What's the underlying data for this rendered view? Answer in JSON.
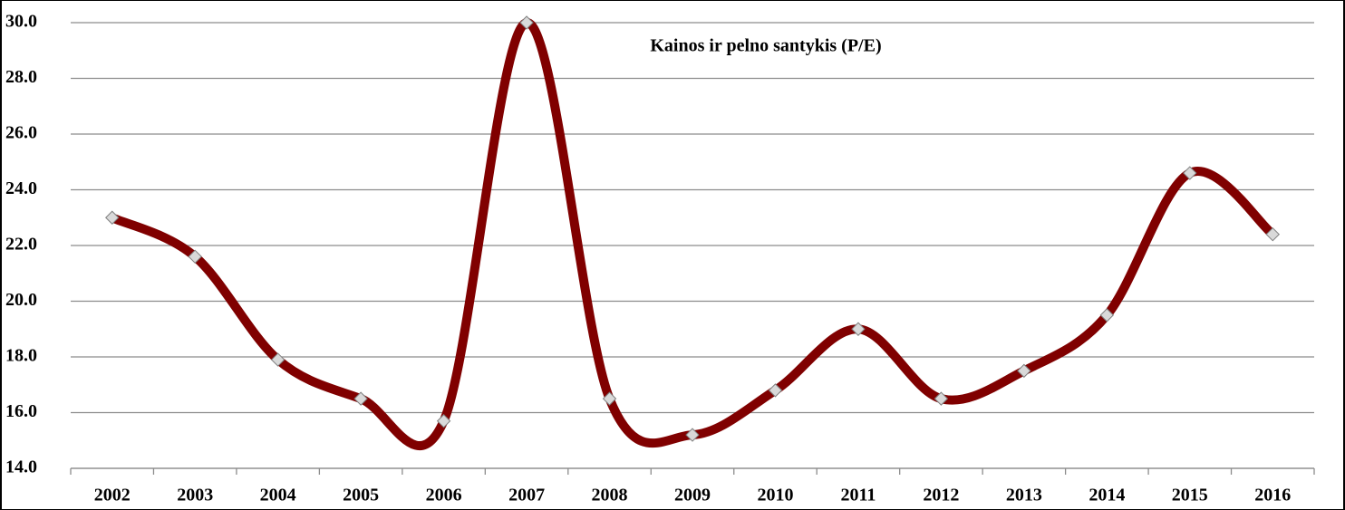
{
  "chart_data": {
    "type": "line",
    "title": "Kainos ir pelno santykis (P/E)",
    "categories": [
      "2002",
      "2003",
      "2004",
      "2005",
      "2006",
      "2007",
      "2008",
      "2009",
      "2010",
      "2011",
      "2012",
      "2013",
      "2014",
      "2015",
      "2016"
    ],
    "series": [
      {
        "name": "P/E",
        "color": "#800000",
        "values": [
          23.0,
          21.6,
          17.9,
          16.5,
          15.7,
          30.0,
          16.5,
          15.2,
          16.8,
          19.0,
          16.5,
          17.5,
          19.5,
          24.6,
          22.4
        ]
      }
    ],
    "ylim": [
      14,
      30
    ],
    "yticks": [
      {
        "value": 14,
        "label": "14.0"
      },
      {
        "value": 16,
        "label": "16.0"
      },
      {
        "value": 18,
        "label": "18.0"
      },
      {
        "value": 20,
        "label": "20.0"
      },
      {
        "value": 22,
        "label": "22.0"
      },
      {
        "value": 24,
        "label": "24.0"
      },
      {
        "value": 26,
        "label": "26.0"
      },
      {
        "value": 28,
        "label": "28.0"
      },
      {
        "value": 30,
        "label": "30.0"
      }
    ],
    "grid": true
  }
}
